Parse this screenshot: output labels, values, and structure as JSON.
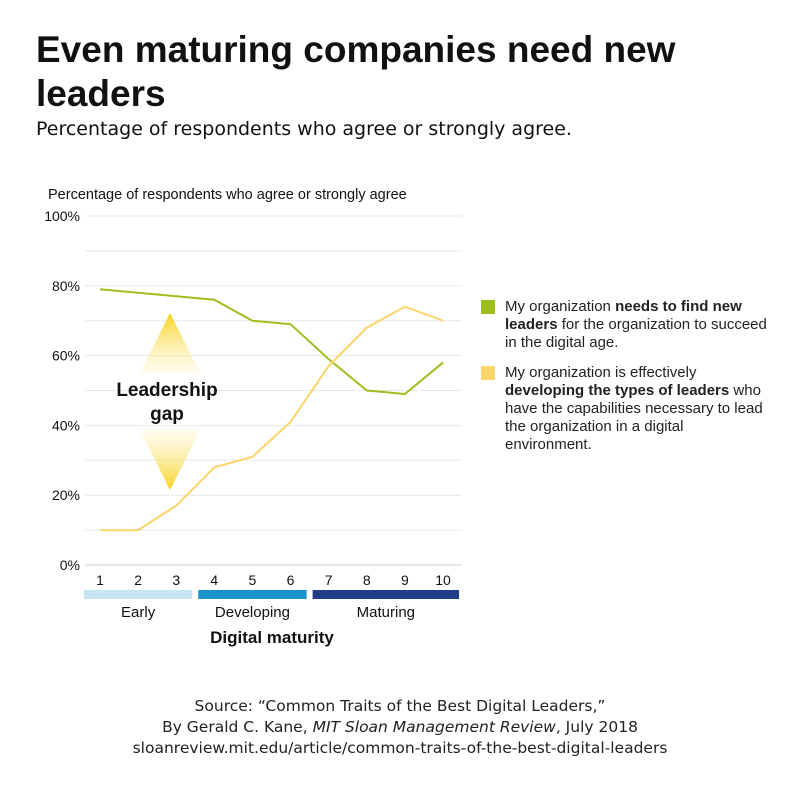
{
  "header": {
    "title": "Even maturing companies need new leaders",
    "subtitle": "Percentage of respondents who agree or strongly agree."
  },
  "chart_data": {
    "type": "line",
    "title": "Even maturing companies need new leaders",
    "ylabel": "Percentage of respondents who agree or strongly agree",
    "xlabel": "Digital maturity",
    "ylim": [
      0,
      100
    ],
    "y_ticks": [
      "0%",
      "20%",
      "40%",
      "60%",
      "80%",
      "100%"
    ],
    "y_tick_values": [
      0,
      20,
      40,
      60,
      80,
      100
    ],
    "x": [
      1,
      2,
      3,
      4,
      5,
      6,
      7,
      8,
      9,
      10
    ],
    "x_tick_labels": [
      "1",
      "2",
      "3",
      "4",
      "5",
      "6",
      "7",
      "8",
      "9",
      "10"
    ],
    "grid": true,
    "series": [
      {
        "name": "My organization needs to find new leaders for the organization to succeed in the digital age.",
        "color": "#9cbf1c",
        "values": [
          79,
          78,
          77,
          76,
          70,
          69,
          59,
          50,
          49,
          58
        ]
      },
      {
        "name": "My organization is effectively developing the types of leaders who have the capabilities necessary to lead the organization in a digital environment.",
        "color": "#fbd46a",
        "values": [
          10,
          10,
          17,
          28,
          31,
          41,
          57,
          68,
          74,
          70
        ]
      }
    ],
    "maturity_bands": [
      {
        "label": "Early",
        "from": 1,
        "to": 3,
        "color": "#c7e6f1"
      },
      {
        "label": "Developing",
        "from": 4,
        "to": 6,
        "color": "#1a93cb"
      },
      {
        "label": "Maturing",
        "from": 7,
        "to": 10,
        "color": "#213d86"
      }
    ],
    "annotation": {
      "line1": "Leadership",
      "line2": "gap"
    }
  },
  "legend": {
    "item1": {
      "pre": "My organization ",
      "bold": "needs to find new leaders",
      "post": " for the organization to succeed in the digital age."
    },
    "item2": {
      "pre": "My organization is effectively ",
      "bold": "developing the types of leaders",
      "post": " who have the capabilities necessary to lead the organization in a digital environment."
    }
  },
  "source": {
    "line1": "Source: “Common Traits of the Best Digital Leaders,”",
    "line2_pre": "By Gerald C. Kane, ",
    "line2_italic": "MIT Sloan Management Review",
    "line2_post": ", July 2018",
    "line3": "sloanreview.mit.edu/article/common-traits-of-the-best-digital-leaders"
  }
}
